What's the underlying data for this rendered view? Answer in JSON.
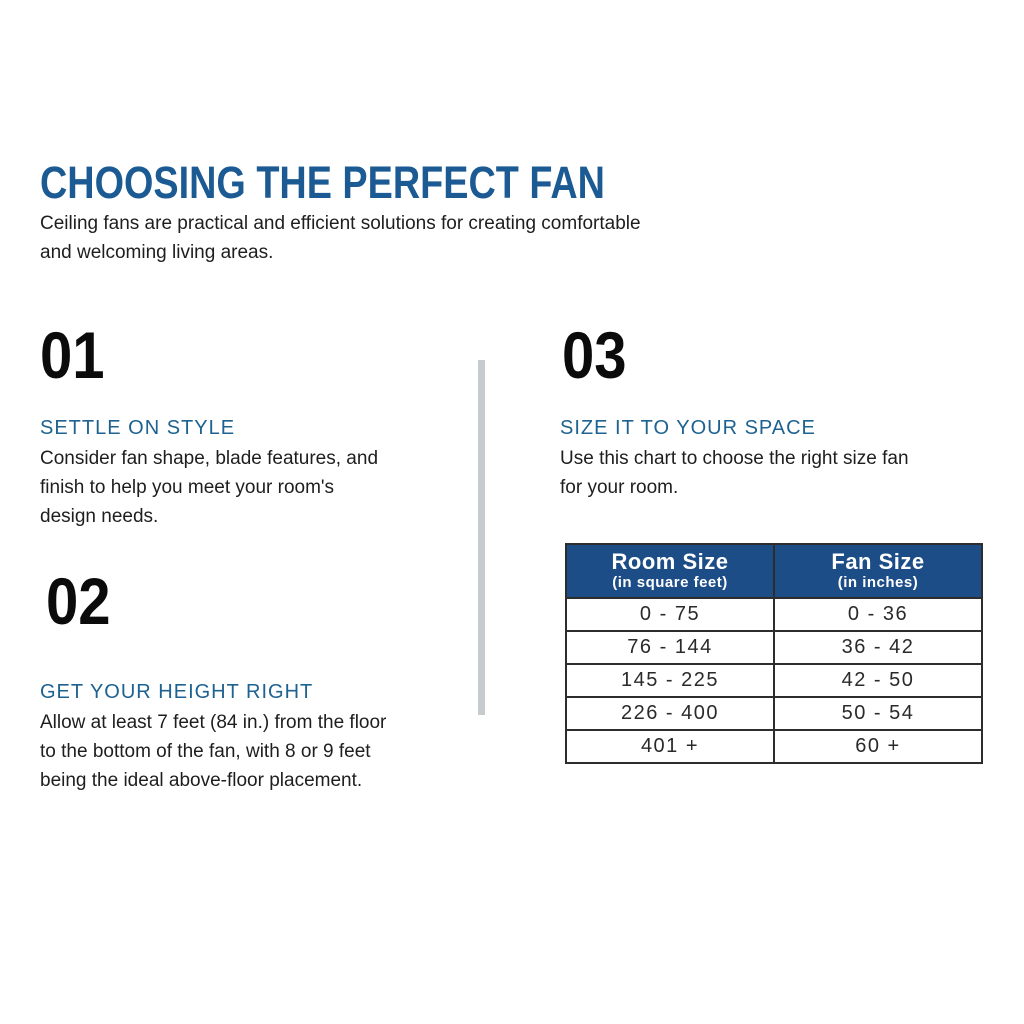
{
  "header": {
    "title": "CHOOSING THE PERFECT FAN",
    "subtitle": "Ceiling fans are practical and efficient solutions for creating comfortable\nand welcoming living areas."
  },
  "sections": [
    {
      "number": "01",
      "heading": "SETTLE ON STYLE",
      "body": "Consider fan shape, blade features, and\nfinish to help you meet your room's\ndesign needs."
    },
    {
      "number": "02",
      "heading": "GET YOUR HEIGHT RIGHT",
      "body": "Allow at least 7 feet (84 in.) from the floor\nto the bottom of the fan, with 8 or 9 feet\nbeing the ideal above-floor placement."
    },
    {
      "number": "03",
      "heading": "SIZE IT TO YOUR SPACE",
      "body": "Use this chart to choose the right size fan\nfor your room."
    }
  ],
  "table": {
    "columns": [
      {
        "title": "Room Size",
        "subtitle": "(in square feet)"
      },
      {
        "title": "Fan Size",
        "subtitle": "(in inches)"
      }
    ],
    "rows": [
      [
        "0 - 75",
        "0 - 36"
      ],
      [
        "76 - 144",
        "36 - 42"
      ],
      [
        "145 - 225",
        "42 - 50"
      ],
      [
        "226 - 400",
        "50 - 54"
      ],
      [
        "401 +",
        "60 +"
      ]
    ]
  },
  "colors": {
    "title_blue": "#1b5a92",
    "heading_blue": "#1d6290",
    "table_header_bg": "#1c4d87",
    "table_header_text": "#ffffff",
    "divider_gray": "#c5cbcf",
    "text_dark": "#1e1e1e"
  }
}
